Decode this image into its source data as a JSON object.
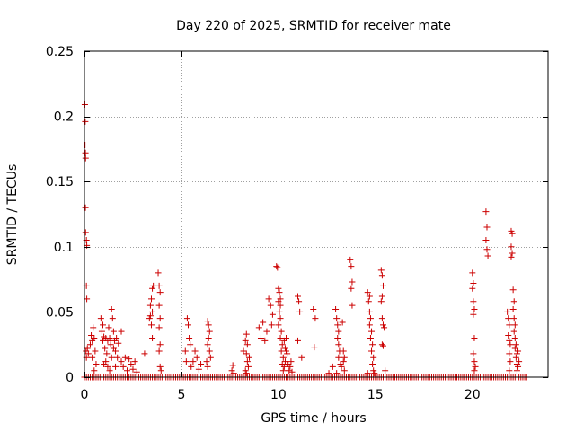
{
  "chart_data": {
    "type": "scatter",
    "title": "Day 220 of 2025, SRMTID for receiver mate",
    "xlabel": "GPS time / hours",
    "ylabel": "SRMTID / TECUs",
    "xlim": [
      0,
      23.9
    ],
    "ylim": [
      0,
      0.25
    ],
    "x_ticks": [
      0,
      5,
      10,
      15,
      20
    ],
    "x_tick_labels": [
      "0",
      "5",
      "10",
      "15",
      "20"
    ],
    "y_ticks": [
      0,
      0.05,
      0.1,
      0.15,
      0.2,
      0.25
    ],
    "y_tick_labels": [
      "0",
      "0.05",
      "0.1",
      "0.15",
      "0.2",
      "0.25"
    ],
    "grid": true,
    "marker": "+",
    "color": "#cc0000",
    "baseline": {
      "y": 0,
      "from": 0,
      "to": 22.8,
      "step": 0.1
    },
    "points": [
      [
        0.02,
        0.209
      ],
      [
        0.04,
        0.196
      ],
      [
        0.03,
        0.178
      ],
      [
        0.05,
        0.172
      ],
      [
        0.06,
        0.168
      ],
      [
        0.05,
        0.13
      ],
      [
        0.06,
        0.111
      ],
      [
        0.1,
        0.105
      ],
      [
        0.12,
        0.101
      ],
      [
        0.1,
        0.07
      ],
      [
        0.12,
        0.06
      ],
      [
        0.08,
        0.02
      ],
      [
        0.1,
        0.015
      ],
      [
        0.15,
        0.022
      ],
      [
        0.2,
        0.018
      ],
      [
        0.3,
        0.025
      ],
      [
        0.35,
        0.032
      ],
      [
        0.4,
        0.028
      ],
      [
        0.45,
        0.038
      ],
      [
        0.5,
        0.03
      ],
      [
        0.55,
        0.02
      ],
      [
        0.6,
        0.01
      ],
      [
        0.4,
        0.015
      ],
      [
        0.5,
        0.005
      ],
      [
        0.85,
        0.045
      ],
      [
        0.9,
        0.035
      ],
      [
        0.95,
        0.028
      ],
      [
        1.0,
        0.031
      ],
      [
        1.05,
        0.022
      ],
      [
        1.1,
        0.012
      ],
      [
        1.15,
        0.018
      ],
      [
        1.2,
        0.028
      ],
      [
        1.25,
        0.038
      ],
      [
        1.3,
        0.03
      ],
      [
        1.35,
        0.025
      ],
      [
        1.4,
        0.052
      ],
      [
        1.45,
        0.045
      ],
      [
        1.5,
        0.035
      ],
      [
        1.55,
        0.028
      ],
      [
        1.6,
        0.02
      ],
      [
        1.65,
        0.03
      ],
      [
        1.7,
        0.015
      ],
      [
        1.2,
        0.008
      ],
      [
        1.3,
        0.005
      ],
      [
        1.0,
        0.01
      ],
      [
        1.6,
        0.008
      ],
      [
        0.95,
        0.04
      ],
      [
        1.1,
        0.03
      ],
      [
        1.5,
        0.022
      ],
      [
        1.75,
        0.026
      ],
      [
        1.4,
        0.015
      ],
      [
        1.9,
        0.012
      ],
      [
        2.0,
        0.008
      ],
      [
        2.1,
        0.015
      ],
      [
        2.2,
        0.005
      ],
      [
        2.3,
        0.014
      ],
      [
        2.4,
        0.01
      ],
      [
        2.5,
        0.006
      ],
      [
        2.6,
        0.012
      ],
      [
        2.7,
        0.004
      ],
      [
        1.9,
        0.035
      ],
      [
        3.1,
        0.018
      ],
      [
        3.35,
        0.045
      ],
      [
        3.4,
        0.055
      ],
      [
        3.45,
        0.06
      ],
      [
        3.5,
        0.068
      ],
      [
        3.45,
        0.04
      ],
      [
        3.5,
        0.03
      ],
      [
        3.55,
        0.07
      ],
      [
        3.5,
        0.05
      ],
      [
        3.4,
        0.047
      ],
      [
        3.8,
        0.08
      ],
      [
        3.85,
        0.07
      ],
      [
        3.9,
        0.065
      ],
      [
        3.85,
        0.055
      ],
      [
        3.9,
        0.045
      ],
      [
        3.85,
        0.038
      ],
      [
        3.9,
        0.025
      ],
      [
        3.85,
        0.02
      ],
      [
        3.9,
        0.008
      ],
      [
        3.95,
        0.005
      ],
      [
        5.2,
        0.02
      ],
      [
        5.25,
        0.012
      ],
      [
        5.3,
        0.045
      ],
      [
        5.35,
        0.04
      ],
      [
        5.4,
        0.03
      ],
      [
        5.45,
        0.025
      ],
      [
        5.5,
        0.008
      ],
      [
        5.6,
        0.012
      ],
      [
        5.7,
        0.02
      ],
      [
        5.8,
        0.015
      ],
      [
        5.9,
        0.006
      ],
      [
        6.0,
        0.01
      ],
      [
        6.35,
        0.043
      ],
      [
        6.4,
        0.04
      ],
      [
        6.45,
        0.035
      ],
      [
        6.4,
        0.03
      ],
      [
        6.35,
        0.025
      ],
      [
        6.45,
        0.02
      ],
      [
        6.3,
        0.012
      ],
      [
        6.5,
        0.015
      ],
      [
        6.35,
        0.008
      ],
      [
        7.6,
        0.005
      ],
      [
        7.65,
        0.009
      ],
      [
        7.7,
        0.003
      ],
      [
        8.2,
        0.02
      ],
      [
        8.3,
        0.028
      ],
      [
        8.35,
        0.033
      ],
      [
        8.4,
        0.025
      ],
      [
        8.35,
        0.018
      ],
      [
        8.4,
        0.012
      ],
      [
        8.45,
        0.008
      ],
      [
        8.3,
        0.005
      ],
      [
        8.5,
        0.015
      ],
      [
        8.35,
        0.003
      ],
      [
        9.0,
        0.038
      ],
      [
        9.1,
        0.03
      ],
      [
        9.2,
        0.042
      ],
      [
        9.3,
        0.028
      ],
      [
        9.4,
        0.035
      ],
      [
        9.5,
        0.06
      ],
      [
        9.6,
        0.055
      ],
      [
        9.7,
        0.048
      ],
      [
        9.65,
        0.04
      ],
      [
        9.9,
        0.085
      ],
      [
        9.95,
        0.084
      ],
      [
        10.0,
        0.068
      ],
      [
        10.05,
        0.065
      ],
      [
        10.1,
        0.06
      ],
      [
        10.05,
        0.05
      ],
      [
        10.1,
        0.045
      ],
      [
        10.0,
        0.04
      ],
      [
        10.15,
        0.035
      ],
      [
        10.1,
        0.03
      ],
      [
        10.2,
        0.025
      ],
      [
        10.15,
        0.02
      ],
      [
        10.25,
        0.015
      ],
      [
        10.2,
        0.01
      ],
      [
        10.3,
        0.008
      ],
      [
        10.25,
        0.005
      ],
      [
        10.35,
        0.012
      ],
      [
        10.4,
        0.02
      ],
      [
        10.45,
        0.018
      ],
      [
        10.5,
        0.01
      ],
      [
        10.55,
        0.005
      ],
      [
        10.6,
        0.008
      ],
      [
        10.65,
        0.012
      ],
      [
        10.7,
        0.004
      ],
      [
        10.3,
        0.028
      ],
      [
        10.35,
        0.022
      ],
      [
        10.4,
        0.03
      ],
      [
        10.1,
        0.055
      ],
      [
        10.0,
        0.058
      ],
      [
        11.0,
        0.062
      ],
      [
        11.05,
        0.058
      ],
      [
        11.1,
        0.05
      ],
      [
        11.0,
        0.028
      ],
      [
        11.2,
        0.015
      ],
      [
        11.8,
        0.052
      ],
      [
        11.9,
        0.045
      ],
      [
        11.85,
        0.023
      ],
      [
        12.6,
        0.003
      ],
      [
        12.8,
        0.008
      ],
      [
        12.95,
        0.052
      ],
      [
        13.0,
        0.045
      ],
      [
        13.05,
        0.04
      ],
      [
        13.1,
        0.035
      ],
      [
        13.05,
        0.03
      ],
      [
        13.1,
        0.025
      ],
      [
        13.15,
        0.02
      ],
      [
        13.1,
        0.015
      ],
      [
        13.2,
        0.01
      ],
      [
        13.25,
        0.008
      ],
      [
        13.3,
        0.042
      ],
      [
        13.35,
        0.02
      ],
      [
        13.4,
        0.015
      ],
      [
        13.35,
        0.012
      ],
      [
        13.4,
        0.005
      ],
      [
        13.0,
        0.003
      ],
      [
        13.7,
        0.09
      ],
      [
        13.75,
        0.085
      ],
      [
        13.8,
        0.073
      ],
      [
        13.75,
        0.068
      ],
      [
        13.8,
        0.055
      ],
      [
        14.6,
        0.065
      ],
      [
        14.65,
        0.058
      ],
      [
        14.7,
        0.05
      ],
      [
        14.75,
        0.045
      ],
      [
        14.7,
        0.04
      ],
      [
        14.8,
        0.035
      ],
      [
        14.75,
        0.03
      ],
      [
        14.85,
        0.025
      ],
      [
        14.8,
        0.02
      ],
      [
        14.9,
        0.015
      ],
      [
        14.85,
        0.01
      ],
      [
        14.9,
        0.005
      ],
      [
        14.95,
        0.003
      ],
      [
        14.6,
        0.003
      ],
      [
        14.7,
        0.062
      ],
      [
        15.3,
        0.082
      ],
      [
        15.35,
        0.078
      ],
      [
        15.4,
        0.07
      ],
      [
        15.35,
        0.062
      ],
      [
        15.3,
        0.058
      ],
      [
        15.35,
        0.045
      ],
      [
        15.4,
        0.04
      ],
      [
        15.45,
        0.038
      ],
      [
        15.35,
        0.025
      ],
      [
        15.4,
        0.024
      ],
      [
        15.5,
        0.005
      ],
      [
        20.0,
        0.08
      ],
      [
        20.05,
        0.072
      ],
      [
        20.0,
        0.068
      ],
      [
        20.05,
        0.058
      ],
      [
        20.1,
        0.052
      ],
      [
        20.05,
        0.048
      ],
      [
        20.1,
        0.03
      ],
      [
        20.05,
        0.018
      ],
      [
        20.1,
        0.012
      ],
      [
        20.15,
        0.008
      ],
      [
        20.1,
        0.005
      ],
      [
        20.7,
        0.127
      ],
      [
        20.75,
        0.115
      ],
      [
        20.7,
        0.105
      ],
      [
        20.75,
        0.098
      ],
      [
        20.8,
        0.093
      ],
      [
        21.8,
        0.05
      ],
      [
        21.85,
        0.045
      ],
      [
        21.9,
        0.04
      ],
      [
        21.85,
        0.032
      ],
      [
        21.9,
        0.028
      ],
      [
        21.95,
        0.025
      ],
      [
        21.9,
        0.018
      ],
      [
        21.95,
        0.012
      ],
      [
        21.9,
        0.005
      ],
      [
        22.0,
        0.112
      ],
      [
        22.05,
        0.11
      ],
      [
        22.0,
        0.1
      ],
      [
        22.05,
        0.095
      ],
      [
        22.0,
        0.092
      ],
      [
        22.1,
        0.067
      ],
      [
        22.15,
        0.058
      ],
      [
        22.1,
        0.052
      ],
      [
        22.15,
        0.045
      ],
      [
        22.2,
        0.04
      ],
      [
        22.15,
        0.035
      ],
      [
        22.2,
        0.03
      ],
      [
        22.25,
        0.025
      ],
      [
        22.2,
        0.022
      ],
      [
        22.3,
        0.018
      ],
      [
        22.25,
        0.015
      ],
      [
        22.3,
        0.01
      ],
      [
        22.35,
        0.008
      ],
      [
        22.3,
        0.005
      ],
      [
        22.4,
        0.012
      ],
      [
        22.35,
        0.02
      ]
    ]
  }
}
